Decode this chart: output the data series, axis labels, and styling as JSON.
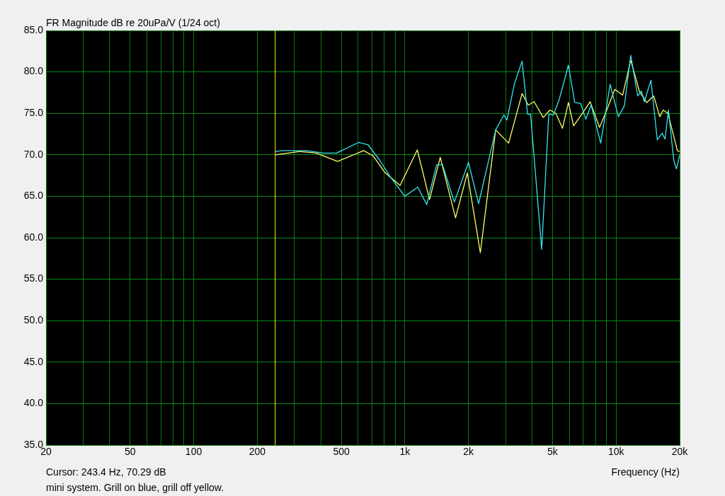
{
  "chart_data": {
    "type": "line",
    "title": "FR Magnitude dB re 20uPa/V (1/24 oct)",
    "xlabel": "Frequency (Hz)",
    "log": "x",
    "grid": true,
    "legend": false,
    "marker": "none",
    "line_style": "solid",
    "xlim": [
      20,
      20000
    ],
    "xticks": [
      20,
      {
        "value": 30,
        "label": null
      },
      {
        "value": 40,
        "label": null
      },
      50,
      {
        "value": 60,
        "label": null
      },
      {
        "value": 70,
        "label": null
      },
      {
        "value": 80,
        "label": null
      },
      {
        "value": 90,
        "label": null
      },
      100,
      200,
      {
        "value": 300,
        "label": null
      },
      {
        "value": 400,
        "label": null
      },
      500,
      {
        "value": 600,
        "label": null
      },
      {
        "value": 700,
        "label": null
      },
      {
        "value": 800,
        "label": null
      },
      {
        "value": 900,
        "label": null
      },
      {
        "value": 1000,
        "label": "1k"
      },
      {
        "value": 2000,
        "label": "2k"
      },
      {
        "value": 3000,
        "label": null
      },
      {
        "value": 4000,
        "label": null
      },
      {
        "value": 5000,
        "label": "5k"
      },
      {
        "value": 6000,
        "label": null
      },
      {
        "value": 7000,
        "label": null
      },
      {
        "value": 8000,
        "label": null
      },
      {
        "value": 9000,
        "label": null
      },
      {
        "value": 10000,
        "label": "10k"
      },
      {
        "value": 20000,
        "label": "20k"
      }
    ],
    "ylim": [
      35,
      85
    ],
    "yticks": [
      {
        "value": 35,
        "label": "35.0"
      },
      {
        "value": 40,
        "label": "40.0"
      },
      {
        "value": 45,
        "label": "45.0"
      },
      {
        "value": 50,
        "label": "50.0"
      },
      {
        "value": 55,
        "label": "55.0"
      },
      {
        "value": 60,
        "label": "60.0"
      },
      {
        "value": 65,
        "label": "65.0"
      },
      {
        "value": 70,
        "label": "70.0"
      },
      {
        "value": 75,
        "label": "75.0"
      },
      {
        "value": 80,
        "label": "80.0"
      },
      {
        "value": 85,
        "label": "85.0"
      }
    ],
    "ref_lines": [
      {
        "axis": "x",
        "value": 243.4,
        "color": "#ffff00"
      }
    ],
    "annotations": [
      "Cursor: 243.4 Hz, 70.29 dB",
      "mini system. Grill on blue, grill off yellow."
    ],
    "series": [
      {
        "color": "#33e6f0",
        "x": [
          243,
          265,
          343,
          411,
          474,
          605,
          670,
          762,
          845,
          999,
          1150,
          1269,
          1413,
          1507,
          1715,
          2000,
          2234,
          2690,
          2944,
          3042,
          3303,
          3589,
          3808,
          3937,
          4443,
          4800,
          5053,
          5383,
          5945,
          6370,
          6790,
          7186,
          7622,
          8454,
          9370,
          10250,
          10940,
          11730,
          12660,
          13180,
          13600,
          14620,
          15670,
          16500,
          17060,
          17690,
          18770,
          19300,
          20000
        ],
        "values": [
          70.4,
          70.5,
          70.5,
          70.2,
          70.2,
          71.5,
          71.2,
          69.3,
          67.5,
          65.0,
          66.1,
          64.0,
          68.8,
          68.8,
          64.3,
          69.1,
          64.1,
          73.0,
          74.8,
          74.2,
          78.6,
          81.3,
          74.9,
          74.9,
          58.6,
          74.9,
          74.8,
          76.7,
          80.8,
          76.3,
          76.2,
          74.3,
          76.0,
          71.4,
          78.5,
          74.6,
          75.9,
          82.0,
          77.1,
          77.7,
          76.4,
          79.0,
          71.8,
          72.6,
          71.9,
          75.4,
          69.3,
          68.3,
          70.0
        ]
      },
      {
        "color": "#ffff66",
        "x": [
          243,
          318,
          381,
          480,
          637,
          706,
          802,
          949,
          1145,
          1309,
          1470,
          1737,
          1975,
          2276,
          2690,
          3098,
          3589,
          3837,
          4093,
          4521,
          4861,
          5185,
          5574,
          5945,
          6290,
          6880,
          7530,
          8350,
          9130,
          9860,
          10740,
          11730,
          12910,
          13960,
          15080,
          16090,
          16710,
          17590,
          19500,
          20000
        ],
        "values": [
          70.0,
          70.4,
          70.2,
          69.2,
          70.5,
          69.9,
          67.9,
          66.3,
          70.6,
          64.6,
          69.7,
          62.4,
          67.8,
          58.2,
          73.0,
          71.4,
          77.4,
          76.0,
          76.4,
          74.5,
          75.4,
          75.0,
          73.2,
          76.3,
          73.5,
          74.9,
          76.4,
          73.3,
          75.7,
          77.9,
          77.2,
          81.4,
          77.6,
          76.3,
          77.1,
          74.6,
          75.4,
          75.0,
          70.5,
          70.4
        ]
      }
    ]
  }
}
